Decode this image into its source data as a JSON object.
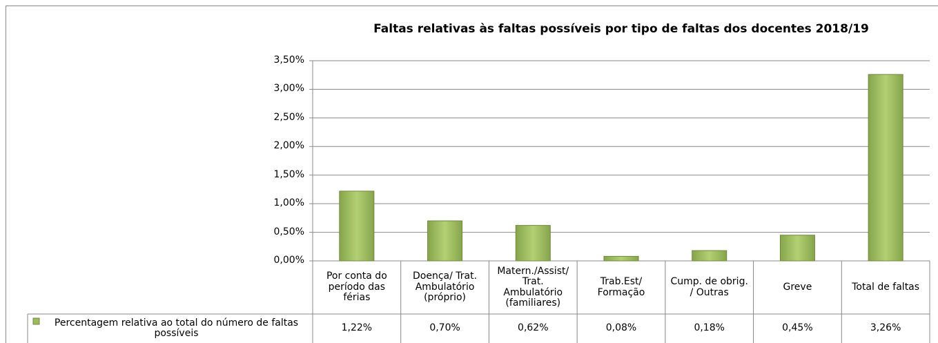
{
  "chart_data": {
    "type": "bar",
    "title": "Faltas relativas às faltas possíveis por tipo de faltas dos docentes 2018/19",
    "categories": [
      "Por conta do período das férias",
      "Doença/ Trat. Ambulatório (próprio)",
      "Matern./Assist/ Trat. Ambulatório (familiares)",
      "Trab.Est/ Formação",
      "Cump. de obrig. / Outras",
      "Greve",
      "Total de faltas"
    ],
    "series": [
      {
        "name": "Percentagem relativa ao total do número de faltas possíveis",
        "color": "#9bbb59",
        "values": [
          1.22,
          0.7,
          0.62,
          0.08,
          0.18,
          0.45,
          3.26
        ],
        "value_labels": [
          "1,22%",
          "0,70%",
          "0,62%",
          "0,08%",
          "0,18%",
          "0,45%",
          "3,26%"
        ]
      }
    ],
    "ylim": [
      0,
      3.5
    ],
    "yticks": [
      {
        "value": 0,
        "label": "0,00%"
      },
      {
        "value": 0.5,
        "label": "0,50%"
      },
      {
        "value": 1,
        "label": "1,00%"
      },
      {
        "value": 1.5,
        "label": "1,50%"
      },
      {
        "value": 2,
        "label": "2,00%"
      },
      {
        "value": 2.5,
        "label": "2,50%"
      },
      {
        "value": 3,
        "label": "3,00%"
      },
      {
        "value": 3.5,
        "label": "3,50%"
      }
    ],
    "grid": true
  }
}
